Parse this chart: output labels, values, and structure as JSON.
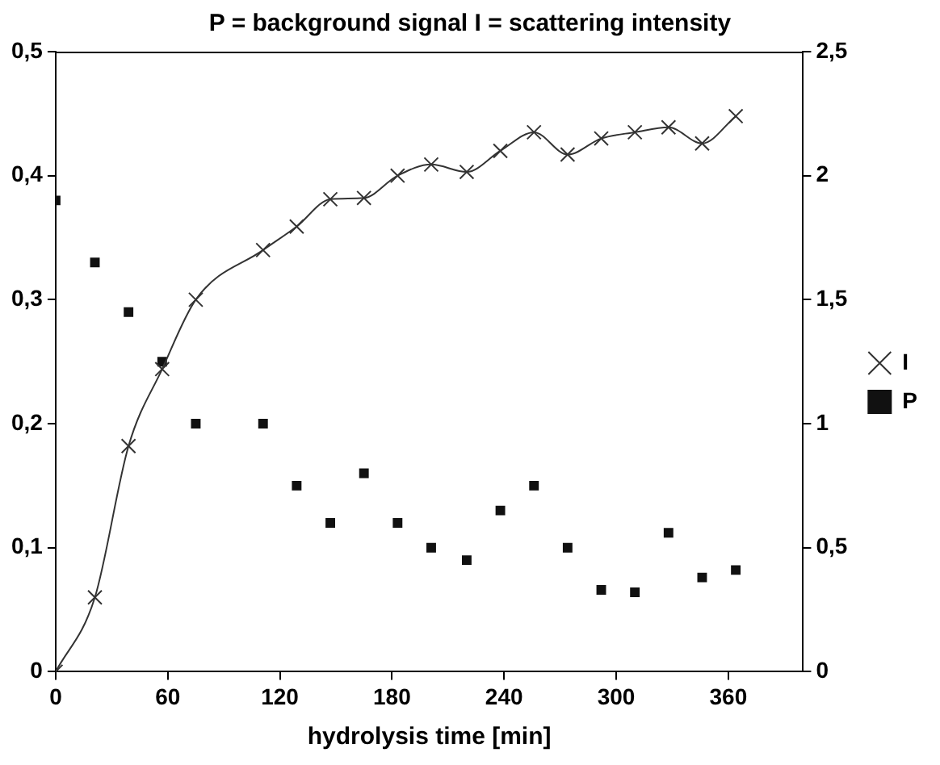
{
  "chart_data": {
    "type": "line",
    "title": "P = background signal I = scattering intensity",
    "xlabel": "hydrolysis time [min]",
    "x": [
      0,
      21,
      39,
      57,
      75,
      111,
      129,
      147,
      165,
      183,
      201,
      220,
      238,
      256,
      274,
      292,
      310,
      328,
      346,
      364
    ],
    "series": [
      {
        "name": "I",
        "color": "#333333",
        "marker": "cross",
        "axis": "y",
        "values": [
          0,
          0.06,
          0.182,
          0.244,
          0.3,
          0.34,
          0.359,
          0.381,
          0.382,
          0.4,
          0.409,
          0.403,
          0.42,
          0.435,
          0.417,
          0.43,
          0.435,
          0.439,
          0.426,
          0.448
        ]
      },
      {
        "name": "P",
        "type": "scatter",
        "color": "#111111",
        "marker": "square",
        "axis": "y2",
        "values": [
          1.9,
          1.65,
          1.45,
          1.25,
          1.0,
          1.0,
          0.75,
          0.6,
          0.8,
          0.6,
          0.5,
          0.45,
          0.65,
          0.75,
          0.5,
          0.33,
          0.32,
          0.56,
          0.38,
          0.41
        ]
      }
    ],
    "xlim": [
      0,
      400
    ],
    "xticks": [
      0,
      60,
      120,
      180,
      240,
      300,
      360
    ],
    "ylim": [
      0,
      0.5
    ],
    "yticks": [
      0,
      {
        "value": 0.1,
        "label": "0,1"
      },
      {
        "value": 0.2,
        "label": "0,2"
      },
      {
        "value": 0.3,
        "label": "0,3"
      },
      {
        "value": 0.4,
        "label": "0,4"
      },
      {
        "value": 0.5,
        "label": "0,5"
      }
    ],
    "y2lim": [
      0,
      2.5
    ],
    "y2ticks": [
      0,
      {
        "value": 0.5,
        "label": "0,5"
      },
      1,
      {
        "value": 1.5,
        "label": "1,5"
      },
      2,
      {
        "value": 2.5,
        "label": "2,5"
      }
    ],
    "grid": false,
    "legend": "right"
  }
}
